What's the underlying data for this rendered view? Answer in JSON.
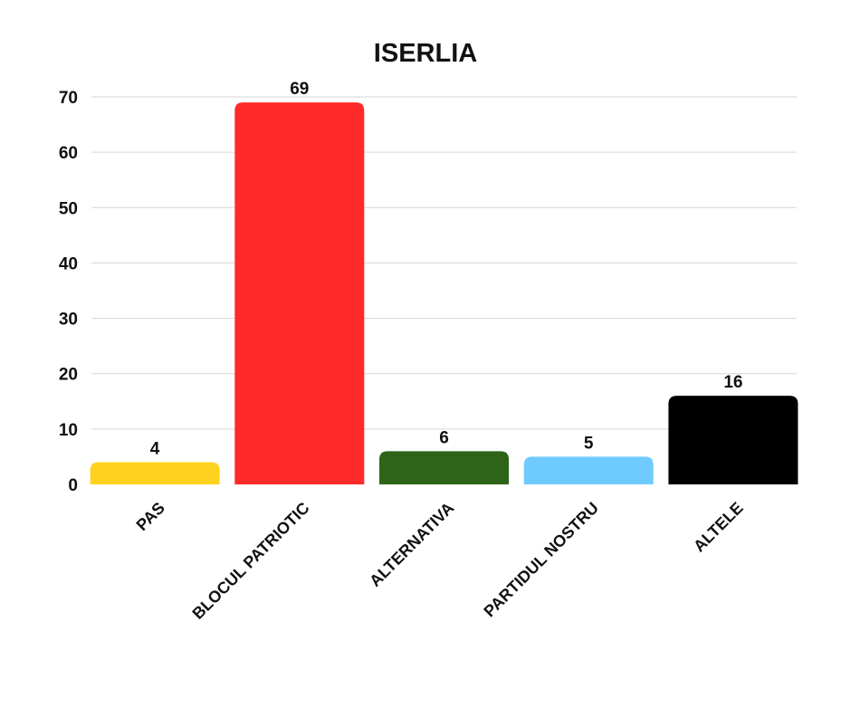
{
  "chart_data": {
    "type": "bar",
    "title": "ISERLIA",
    "xlabel": "",
    "ylabel": "",
    "categories": [
      "PAS",
      "BLOCUL PATRIOTIC",
      "ALTERNATIVA",
      "PARTIDUL NOSTRU",
      "ALTELE"
    ],
    "values": [
      4,
      69,
      6,
      5,
      16
    ],
    "colors": [
      "#FFD21F",
      "#FF2A2A",
      "#2E6418",
      "#6FCBFF",
      "#000000"
    ],
    "ylim": [
      0,
      70
    ],
    "yticks": [
      "0",
      "10",
      "20",
      "30",
      "40",
      "50",
      "60",
      "70"
    ],
    "data_labels": [
      "4",
      "69",
      "6",
      "5",
      "16"
    ],
    "grid": true,
    "legend": "none"
  }
}
